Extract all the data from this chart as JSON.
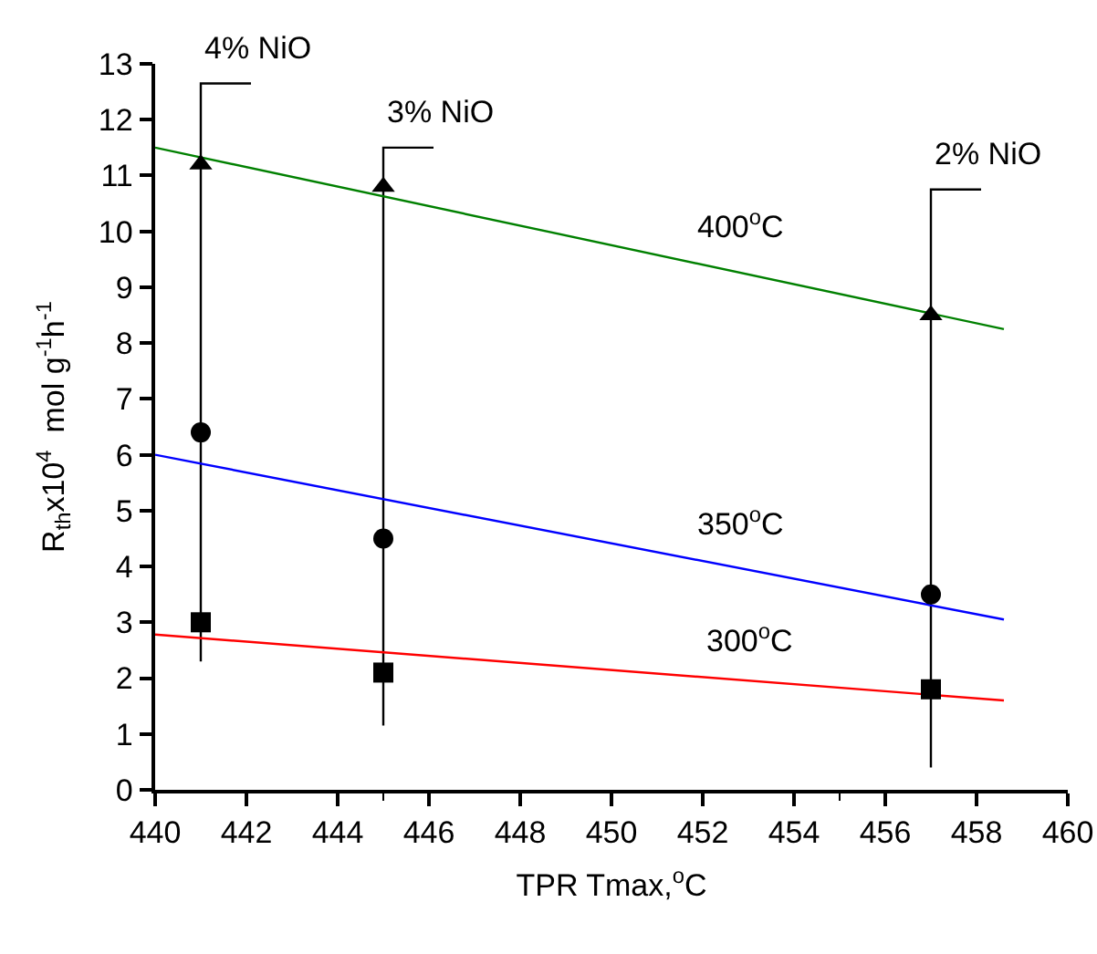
{
  "chart_data": {
    "type": "scatter",
    "xlabel": "TPR Tmax,$^{o}$C",
    "ylabel": "R$_{th}$x10$^{4}$  mol g$^{-1}$h$^{-1}$",
    "xlim": [
      440,
      460
    ],
    "xticks": [
      440,
      442,
      444,
      446,
      448,
      450,
      452,
      454,
      456,
      458,
      460
    ],
    "ylim": [
      0,
      13
    ],
    "yticks": [
      0,
      1,
      2,
      3,
      4,
      5,
      6,
      7,
      8,
      9,
      10,
      11,
      12,
      13
    ],
    "grid": false,
    "series": [
      {
        "type": "line",
        "color": "#000000",
        "x": [
          441,
          441,
          442.1
        ],
        "values": [
          2.3,
          12.65,
          12.65
        ],
        "marker": "none"
      },
      {
        "type": "line",
        "color": "#000000",
        "x": [
          445,
          445,
          446.1
        ],
        "values": [
          1.15,
          11.5,
          11.5
        ],
        "marker": "none"
      },
      {
        "type": "line",
        "color": "#000000",
        "x": [
          457,
          457,
          458.1
        ],
        "values": [
          0.4,
          10.75,
          10.75
        ],
        "marker": "none"
      },
      {
        "type": "line",
        "color": "#008000",
        "x": [
          440,
          458.6
        ],
        "values": [
          11.5,
          8.25
        ],
        "marker": "none"
      },
      {
        "type": "line",
        "color": "#0000ff",
        "x": [
          440,
          458.6
        ],
        "values": [
          6.0,
          3.05
        ],
        "marker": "none"
      },
      {
        "type": "line",
        "color": "#ff0000",
        "x": [
          440,
          458.6
        ],
        "values": [
          2.78,
          1.6
        ],
        "marker": "none"
      },
      {
        "color": "#000000",
        "x": [
          441,
          445,
          457
        ],
        "values": [
          3.0,
          2.1,
          1.8
        ],
        "marker": "square"
      },
      {
        "color": "#000000",
        "x": [
          441,
          445,
          457
        ],
        "values": [
          6.4,
          4.5,
          3.5
        ],
        "marker": "circle"
      },
      {
        "color": "#000000",
        "x": [
          441,
          445,
          457
        ],
        "values": [
          11.2,
          10.8,
          8.5
        ],
        "marker": "triangle"
      }
    ],
    "annotations": [
      {
        "text": "4% NiO",
        "x": 441,
        "y": 12.65
      },
      {
        "text": "3% NiO",
        "x": 445,
        "y": 11.5
      },
      {
        "text": "2% NiO",
        "x": 457,
        "y": 10.75
      },
      {
        "text": "400$^{o}$C",
        "x": 451.8,
        "y": 9.44
      },
      {
        "text": "350$^{o}$C",
        "x": 451.8,
        "y": 4.13
      },
      {
        "text": "300$^{o}$C",
        "x": 452,
        "y": 2.02
      }
    ]
  }
}
